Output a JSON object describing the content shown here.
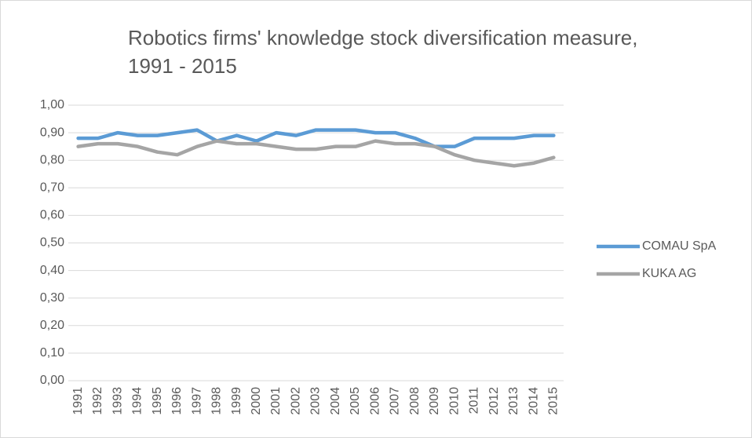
{
  "chart_data": {
    "type": "line",
    "title": "Robotics firms' knowledge stock diversification measure, 1991 - 2015",
    "categories": [
      "1991",
      "1992",
      "1993",
      "1994",
      "1995",
      "1996",
      "1997",
      "1998",
      "1999",
      "2000",
      "2001",
      "2002",
      "2003",
      "2004",
      "2005",
      "2006",
      "2007",
      "2008",
      "2009",
      "2010",
      "2011",
      "2012",
      "2013",
      "2014",
      "2015"
    ],
    "series": [
      {
        "name": "COMAU SpA",
        "color": "#5b9bd5",
        "values": [
          0.88,
          0.88,
          0.9,
          0.89,
          0.89,
          0.9,
          0.91,
          0.87,
          0.89,
          0.87,
          0.9,
          0.89,
          0.91,
          0.91,
          0.91,
          0.9,
          0.9,
          0.88,
          0.85,
          0.85,
          0.88,
          0.88,
          0.88,
          0.89,
          0.89
        ]
      },
      {
        "name": "KUKA AG",
        "color": "#a5a5a5",
        "values": [
          0.85,
          0.86,
          0.86,
          0.85,
          0.83,
          0.82,
          0.85,
          0.87,
          0.86,
          0.86,
          0.85,
          0.84,
          0.84,
          0.85,
          0.85,
          0.87,
          0.86,
          0.86,
          0.85,
          0.82,
          0.8,
          0.79,
          0.78,
          0.79,
          0.81
        ]
      }
    ],
    "ylim": [
      0,
      1
    ],
    "yticks": [
      {
        "value": 0,
        "label": "0,00"
      },
      {
        "value": 0.1,
        "label": "0,10"
      },
      {
        "value": 0.2,
        "label": "0,20"
      },
      {
        "value": 0.3,
        "label": "0,30"
      },
      {
        "value": 0.4,
        "label": "0,40"
      },
      {
        "value": 0.5,
        "label": "0,50"
      },
      {
        "value": 0.6,
        "label": "0,60"
      },
      {
        "value": 0.7,
        "label": "0,70"
      },
      {
        "value": 0.8,
        "label": "0,80"
      },
      {
        "value": 0.9,
        "label": "0,90"
      },
      {
        "value": 1,
        "label": "1,00"
      }
    ],
    "grid": true,
    "legend": "right"
  }
}
